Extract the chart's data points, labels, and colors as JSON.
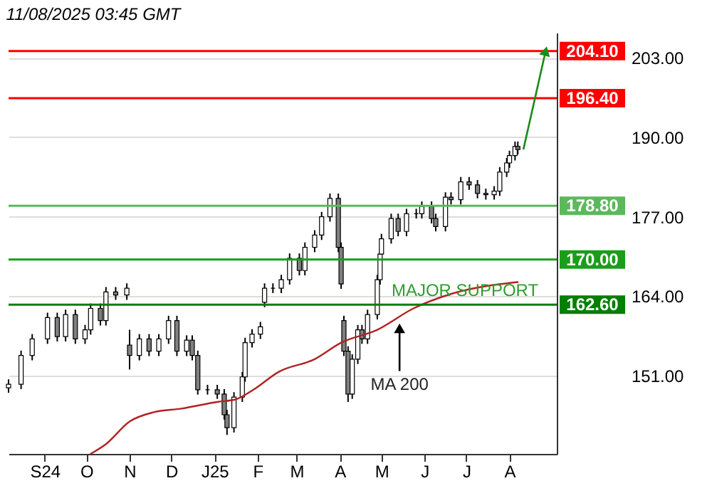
{
  "chart_data": {
    "type": "candlestick",
    "annotations": [
      "11/08/2025 03:45 GMT",
      {
        "text": "MAJOR SUPPORT",
        "x": "2025-06-30",
        "y": 162.6
      },
      {
        "text": "MA 200",
        "x": "2025-05-14",
        "y": 159.9
      }
    ],
    "x": [
      "2024-08-06",
      "2024-08-15",
      "2024-08-23",
      "2024-09-03",
      "2024-09-10",
      "2024-09-16",
      "2024-09-23",
      "2024-09-30",
      "2024-10-04",
      "2024-10-11",
      "2024-10-15",
      "2024-10-22",
      "2024-10-30",
      "2024-11-01",
      "2024-11-08",
      "2024-11-15",
      "2024-11-22",
      "2024-11-29",
      "2024-12-05",
      "2024-12-12",
      "2024-12-16",
      "2024-12-20",
      "2024-12-27",
      "2025-01-03",
      "2025-01-08",
      "2025-01-10",
      "2025-01-15",
      "2025-01-21",
      "2025-01-23",
      "2025-01-28",
      "2025-02-03",
      "2025-02-06",
      "2025-02-12",
      "2025-02-18",
      "2025-02-24",
      "2025-03-03",
      "2025-03-07",
      "2025-03-14",
      "2025-03-19",
      "2025-03-25",
      "2025-03-31",
      "2025-04-02",
      "2025-04-04",
      "2025-04-07",
      "2025-04-10",
      "2025-04-14",
      "2025-04-17",
      "2025-04-21",
      "2025-04-28",
      "2025-04-30",
      "2025-05-01",
      "2025-05-08",
      "2025-05-13",
      "2025-05-19",
      "2025-05-26",
      "2025-05-30",
      "2025-06-06",
      "2025-06-09",
      "2025-06-16",
      "2025-06-20",
      "2025-06-27",
      "2025-07-03",
      "2025-07-09",
      "2025-07-15",
      "2025-07-21",
      "2025-07-25",
      "2025-07-30",
      "2025-08-01",
      "2025-08-05",
      "2025-08-07"
    ],
    "ohlc": [
      [
        149.0,
        150.4,
        148.2,
        149.6
      ],
      [
        149.6,
        155.1,
        148.8,
        154.3
      ],
      [
        154.3,
        157.8,
        153.5,
        157.0
      ],
      [
        157.0,
        161.3,
        156.2,
        160.5
      ],
      [
        160.5,
        161.3,
        156.6,
        157.4
      ],
      [
        157.4,
        161.8,
        156.6,
        161.0
      ],
      [
        161.0,
        161.8,
        156.2,
        157.0
      ],
      [
        157.0,
        159.3,
        156.2,
        158.5
      ],
      [
        158.5,
        162.8,
        157.7,
        162.0
      ],
      [
        162.0,
        162.8,
        159.2,
        160.0
      ],
      [
        160.0,
        165.5,
        159.2,
        164.7
      ],
      [
        164.7,
        165.5,
        163.4,
        164.2
      ],
      [
        164.2,
        166.1,
        163.4,
        165.3
      ],
      [
        156.0,
        158.5,
        152.0,
        154.3
      ],
      [
        154.3,
        157.8,
        153.5,
        157.0
      ],
      [
        157.0,
        157.8,
        154.2,
        155.0
      ],
      [
        155.0,
        157.8,
        154.2,
        157.0
      ],
      [
        157.0,
        160.8,
        156.2,
        160.0
      ],
      [
        160.0,
        160.8,
        154.2,
        155.0
      ],
      [
        155.0,
        157.6,
        154.2,
        156.8
      ],
      [
        156.8,
        157.6,
        153.5,
        154.3
      ],
      [
        154.3,
        155.1,
        147.9,
        148.7
      ],
      [
        148.7,
        149.5,
        147.9,
        148.7
      ],
      [
        148.7,
        149.5,
        147.2,
        148.0
      ],
      [
        148.0,
        148.8,
        143.8,
        144.6
      ],
      [
        144.6,
        145.4,
        141.3,
        142.5
      ],
      [
        142.5,
        148.3,
        141.7,
        147.5
      ],
      [
        147.5,
        151.6,
        146.7,
        150.8
      ],
      [
        150.8,
        157.2,
        150.0,
        156.4
      ],
      [
        156.4,
        158.6,
        155.6,
        157.8
      ],
      [
        157.8,
        159.8,
        157.0,
        159.0
      ],
      [
        163.0,
        166.1,
        162.2,
        165.3
      ],
      [
        165.3,
        166.1,
        164.5,
        165.3
      ],
      [
        165.3,
        167.5,
        164.5,
        166.7
      ],
      [
        166.7,
        171.0,
        165.9,
        170.2
      ],
      [
        170.2,
        171.0,
        167.4,
        168.2
      ],
      [
        168.2,
        172.8,
        167.4,
        172.0
      ],
      [
        172.0,
        174.8,
        171.2,
        174.0
      ],
      [
        174.0,
        177.8,
        173.2,
        177.0
      ],
      [
        177.0,
        180.8,
        176.2,
        180.0
      ],
      [
        180.0,
        180.8,
        171.2,
        172.0
      ],
      [
        172.0,
        172.8,
        165.2,
        166.0
      ],
      [
        160.0,
        160.8,
        154.2,
        155.0
      ],
      [
        155.0,
        155.8,
        146.7,
        148.0
      ],
      [
        148.0,
        154.5,
        147.2,
        153.7
      ],
      [
        153.7,
        159.3,
        152.9,
        158.5
      ],
      [
        158.5,
        159.3,
        156.2,
        157.0
      ],
      [
        157.0,
        161.8,
        156.2,
        161.0
      ],
      [
        161.0,
        167.5,
        160.2,
        166.7
      ],
      [
        166.7,
        171.7,
        165.9,
        170.9
      ],
      [
        170.9,
        174.2,
        170.1,
        173.4
      ],
      [
        173.4,
        177.5,
        172.6,
        176.7
      ],
      [
        176.7,
        177.5,
        173.8,
        174.6
      ],
      [
        174.6,
        178.3,
        173.8,
        177.5
      ],
      [
        177.5,
        178.3,
        176.7,
        177.5
      ],
      [
        177.5,
        179.5,
        176.7,
        178.7
      ],
      [
        178.7,
        179.5,
        175.9,
        176.7
      ],
      [
        176.7,
        177.5,
        174.6,
        175.4
      ],
      [
        175.4,
        181.0,
        174.6,
        180.2
      ],
      [
        180.2,
        181.0,
        179.0,
        179.8
      ],
      [
        179.8,
        183.5,
        179.0,
        182.7
      ],
      [
        182.7,
        183.5,
        181.4,
        182.2
      ],
      [
        182.2,
        183.0,
        180.0,
        180.8
      ],
      [
        180.8,
        181.6,
        179.8,
        180.6
      ],
      [
        180.6,
        182.0,
        179.8,
        181.2
      ],
      [
        181.2,
        185.1,
        180.4,
        184.3
      ],
      [
        184.3,
        186.6,
        183.5,
        185.8
      ],
      [
        185.8,
        187.8,
        185.0,
        187.0
      ],
      [
        187.0,
        189.3,
        186.2,
        188.5
      ],
      [
        188.5,
        189.3,
        187.2,
        188.0
      ]
    ],
    "series": [
      {
        "type": "line",
        "color": "#b22222",
        "x": [
          "2024-10-04",
          "2024-10-15",
          "2024-11-01",
          "2024-11-18",
          "2024-12-08",
          "2025-01-03",
          "2025-01-16",
          "2025-01-29",
          "2025-02-16",
          "2025-03-14",
          "2025-04-02",
          "2025-04-28",
          "2025-05-24",
          "2025-06-19",
          "2025-08-07"
        ],
        "values": [
          138.2,
          139.8,
          143.5,
          145.0,
          145.6,
          146.7,
          147.1,
          148.7,
          151.6,
          153.7,
          156.4,
          158.5,
          162.0,
          164.3,
          166.3
        ]
      }
    ],
    "xlim": [
      "2024-08-06",
      "2025-09-04"
    ],
    "xticks": [
      {
        "value": "2024-09-01",
        "label": "S24"
      },
      {
        "value": "2024-10-01",
        "label": "O"
      },
      {
        "value": "2024-11-01",
        "label": "N"
      },
      {
        "value": "2024-12-01",
        "label": "D"
      },
      {
        "value": "2025-01-01",
        "label": "J25"
      },
      {
        "value": "2025-02-01",
        "label": "F"
      },
      {
        "value": "2025-03-01",
        "label": "M"
      },
      {
        "value": "2025-04-01",
        "label": "A"
      },
      {
        "value": "2025-05-01",
        "label": "M"
      },
      {
        "value": "2025-06-01",
        "label": "J"
      },
      {
        "value": "2025-07-01",
        "label": "J"
      },
      {
        "value": "2025-08-01",
        "label": "A"
      }
    ],
    "ylim": [
      138.2,
      207.1
    ],
    "yticks": [
      {
        "value": 151,
        "label": "151.00"
      },
      {
        "value": 164,
        "label": "164.00"
      },
      {
        "value": 177,
        "label": "177.00"
      },
      {
        "value": 190,
        "label": "190.00"
      },
      {
        "value": 203,
        "label": "203.00"
      }
    ],
    "ref_lines": [
      {
        "axis": "y",
        "value": 204.1,
        "label": "204.10",
        "color": "#ff0000"
      },
      {
        "axis": "y",
        "value": 196.4,
        "label": "196.40",
        "color": "#ff0000"
      },
      {
        "axis": "y",
        "value": 178.8,
        "label": "178.80",
        "color": "#5cb85c"
      },
      {
        "axis": "y",
        "value": 170.0,
        "label": "170.00",
        "color": "#1a9e1a"
      },
      {
        "axis": "y",
        "value": 162.6,
        "label": "162.60",
        "color": "#008000"
      }
    ],
    "grid": "y"
  }
}
